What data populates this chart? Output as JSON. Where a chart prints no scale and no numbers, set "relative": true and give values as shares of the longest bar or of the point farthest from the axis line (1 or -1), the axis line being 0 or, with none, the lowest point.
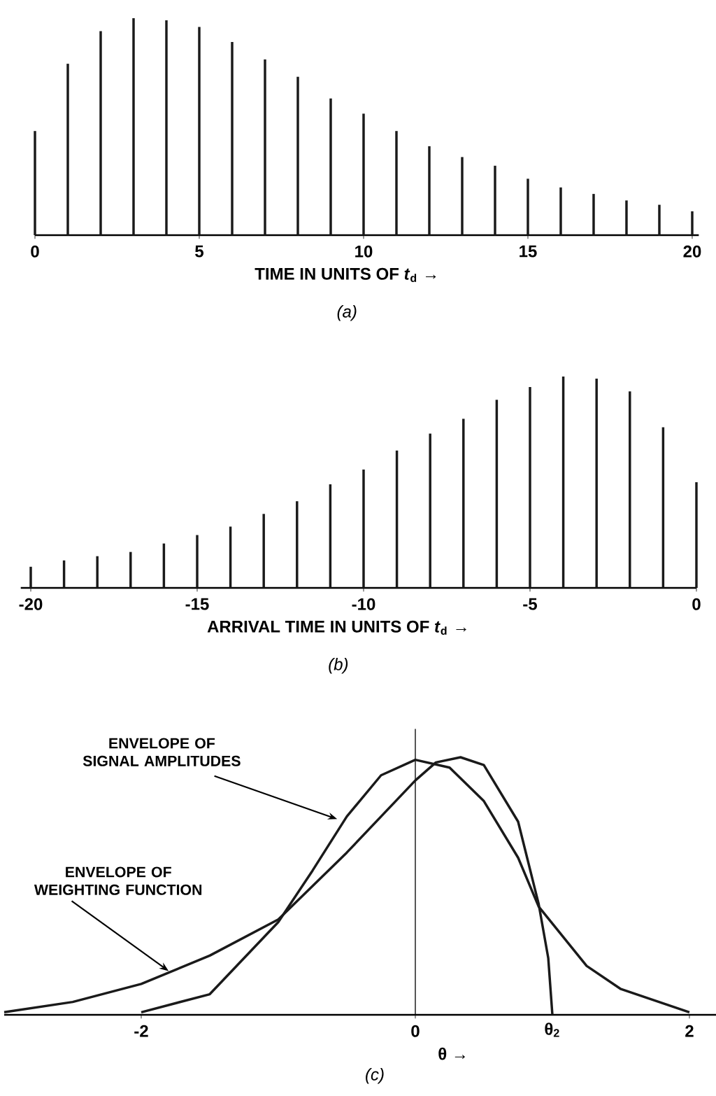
{
  "chart_data": [
    {
      "type": "bar",
      "relative": true,
      "xlabel": "TIME IN UNITS OF *t*$_{d}$ →",
      "x": [
        0,
        1,
        2,
        3,
        4,
        5,
        6,
        7,
        8,
        9,
        10,
        11,
        12,
        13,
        14,
        15,
        16,
        17,
        18,
        19,
        20
      ],
      "values": [
        0.48,
        0.79,
        0.94,
        1.0,
        0.99,
        0.96,
        0.89,
        0.81,
        0.73,
        0.63,
        0.56,
        0.48,
        0.41,
        0.36,
        0.32,
        0.26,
        0.22,
        0.19,
        0.16,
        0.14,
        0.11
      ],
      "color": "#1a1a1a",
      "xlim": [
        0,
        20.2
      ],
      "xticks": [
        0,
        5,
        10,
        15,
        20
      ],
      "annotations": [
        "(a)"
      ]
    },
    {
      "type": "bar",
      "relative": true,
      "xlabel": "ARRIVAL TIME IN UNITS OF *t*$_{d}$ →",
      "x": [
        -20,
        -19,
        -18,
        -17,
        -16,
        -15,
        -14,
        -13,
        -12,
        -11,
        -10,
        -9,
        -8,
        -7,
        -6,
        -5,
        -4,
        -3,
        -2,
        -1,
        0
      ],
      "values": [
        0.1,
        0.13,
        0.15,
        0.17,
        0.21,
        0.25,
        0.29,
        0.35,
        0.41,
        0.49,
        0.56,
        0.65,
        0.73,
        0.8,
        0.89,
        0.95,
        1.0,
        0.99,
        0.93,
        0.76,
        0.5
      ],
      "color": "#1a1a1a",
      "xlim": [
        -20.3,
        0
      ],
      "xticks": [
        -20,
        -15,
        -10,
        -5,
        0
      ],
      "annotations": [
        "(b)"
      ]
    },
    {
      "type": "line",
      "relative": true,
      "xlabel": "θ →",
      "marker": "none",
      "line_style": "solid",
      "xlim": [
        -3,
        2.2
      ],
      "xticks": [
        -2,
        0,
        2
      ],
      "series": [
        {
          "color": "#1a1a1a",
          "x": [
            -2,
            -1.5,
            -1,
            -0.75,
            -0.5,
            -0.25,
            0,
            0.25,
            0.5,
            0.75,
            0.9,
            1.25,
            1.5,
            2
          ],
          "values": [
            0.01,
            0.08,
            0.36,
            0.56,
            0.77,
            0.93,
            0.99,
            0.96,
            0.83,
            0.61,
            0.42,
            0.19,
            0.1,
            0.01
          ]
        },
        {
          "color": "#1a1a1a",
          "x": [
            -3,
            -2.5,
            -2,
            -1.5,
            -1,
            -0.5,
            0,
            0.15,
            0.33,
            0.5,
            0.75,
            0.9,
            0.97,
            1.0
          ],
          "values": [
            0.01,
            0.05,
            0.12,
            0.23,
            0.37,
            0.63,
            0.91,
            0.98,
            1.0,
            0.97,
            0.75,
            0.43,
            0.22,
            0.0
          ]
        }
      ],
      "annotations": [
        {
          "text": "ENVELOPE OF SIGNAL AMPLITUDES",
          "x": -0.57,
          "y": 0.76
        },
        {
          "text": "ENVELOPE OF WEIGHTING FUNCTION",
          "x": -1.8,
          "y": 0.17
        },
        {
          "text": "θ$_{2}$",
          "x": 1.0,
          "y": 0
        },
        "(c)"
      ]
    }
  ]
}
